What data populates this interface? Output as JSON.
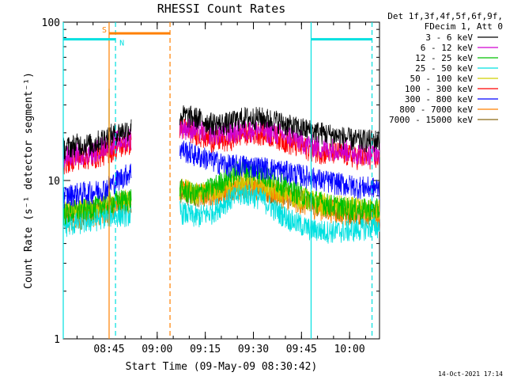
{
  "chart_data": {
    "type": "line",
    "title": "RHESSI Count Rates",
    "xlabel": "Start Time (09-May-09 08:30:42)",
    "ylabel": "Count Rate (s⁻¹ detector segment⁻¹)",
    "ylim": [
      1,
      100
    ],
    "yscale": "log",
    "xlim": [
      "08:30:42",
      "10:09:20"
    ],
    "x_ticks": [
      "08:45",
      "09:00",
      "09:15",
      "09:30",
      "09:45",
      "10:00"
    ],
    "y_ticks": [
      "1",
      "10",
      "100"
    ],
    "grid": false,
    "legend_placement": "right",
    "legend_header": [
      "Det 1f,3f,4f,5f,6f,9f,",
      "FDecim 1, Att 0"
    ],
    "timestamp": "14-Oct-2021 17:14",
    "data_gaps": [
      [
        "08:52",
        "09:07"
      ]
    ],
    "x": [
      "08:31",
      "08:35",
      "08:40",
      "08:44",
      "09:07",
      "09:12",
      "09:17",
      "09:22",
      "09:27",
      "09:32",
      "09:37",
      "09:42",
      "09:47",
      "09:52",
      "09:57",
      "10:02",
      "10:07"
    ],
    "series": [
      {
        "name": "3 - 6 keV",
        "color": "#000000",
        "values": [
          16,
          17,
          17,
          19,
          26,
          25,
          23,
          23,
          25,
          25,
          24,
          22,
          21,
          20,
          19,
          18,
          18
        ]
      },
      {
        "name": "6 - 12 keV",
        "color": "#d000d0",
        "values": [
          14,
          15,
          15,
          17,
          22,
          21,
          20,
          20,
          21,
          21,
          20,
          19,
          17,
          16,
          16,
          15,
          15
        ]
      },
      {
        "name": "12 - 25 keV",
        "color": "#00c000",
        "values": [
          6.2,
          6.5,
          6.7,
          7.2,
          8.8,
          8.2,
          9.0,
          10.5,
          12.0,
          11.2,
          10.0,
          8.8,
          7.8,
          7.2,
          6.8,
          6.6,
          6.6
        ]
      },
      {
        "name": "25 - 50 keV",
        "color": "#00e0e0",
        "values": [
          5.2,
          5.4,
          5.6,
          6.0,
          6.4,
          5.9,
          6.3,
          7.5,
          8.3,
          7.8,
          6.5,
          5.6,
          5.0,
          4.8,
          4.8,
          4.9,
          5.1
        ]
      },
      {
        "name": "50 - 100 keV",
        "color": "#d0d000",
        "values": [
          6.4,
          6.6,
          6.8,
          7.0,
          9.0,
          8.3,
          8.6,
          9.4,
          10.0,
          9.6,
          8.8,
          8.1,
          7.6,
          7.1,
          6.9,
          6.7,
          6.6
        ]
      },
      {
        "name": "100 - 300 keV",
        "color": "#ff0000",
        "values": [
          13,
          14,
          14,
          15,
          22,
          20,
          18,
          18,
          20,
          20,
          19,
          17,
          16,
          15,
          15,
          14,
          14
        ]
      },
      {
        "name": "300 - 800 keV",
        "color": "#0000ff",
        "values": [
          8,
          8.3,
          8.5,
          9,
          16,
          14.5,
          13.5,
          12.5,
          12.5,
          12.2,
          11.8,
          11.2,
          10.6,
          10.0,
          9.6,
          9.2,
          9.0
        ]
      },
      {
        "name": "800 - 7000 keV",
        "color": "#ff8000",
        "values": [
          5.6,
          5.8,
          6.0,
          6.4,
          9.0,
          8.2,
          8.3,
          8.7,
          9.2,
          8.8,
          8.2,
          7.6,
          7.0,
          6.6,
          6.3,
          6.1,
          6.0
        ]
      },
      {
        "name": "7000 - 15000 keV",
        "color": "#8b6914",
        "values": [
          6.0,
          6.2,
          6.4,
          6.8,
          8.6,
          8.0,
          8.2,
          8.8,
          9.4,
          9.0,
          8.4,
          7.8,
          7.3,
          6.8,
          6.5,
          6.3,
          6.2
        ]
      }
    ],
    "annotations": [
      {
        "label": "S",
        "color": "#ff8000",
        "start": "08:45",
        "end": "09:04",
        "level": 85
      },
      {
        "label": "N",
        "color": "#00e0e0",
        "start": "08:30:42",
        "end": "08:47",
        "level": 78
      },
      {
        "label": "",
        "color": "#00e0e0",
        "start": "09:48",
        "end": "10:07",
        "level": 78
      }
    ],
    "markers": [
      {
        "time": "08:45",
        "color": "#ff8000",
        "style": "solid"
      },
      {
        "time": "08:47",
        "color": "#00e0e0",
        "style": "dashed"
      },
      {
        "time": "09:04",
        "color": "#ff8000",
        "style": "dashed"
      },
      {
        "time": "09:48",
        "color": "#00e0e0",
        "style": "solid"
      },
      {
        "time": "10:07",
        "color": "#00e0e0",
        "style": "dashed"
      },
      {
        "time": "08:30:42",
        "color": "#00e0e0",
        "style": "solid"
      }
    ]
  }
}
